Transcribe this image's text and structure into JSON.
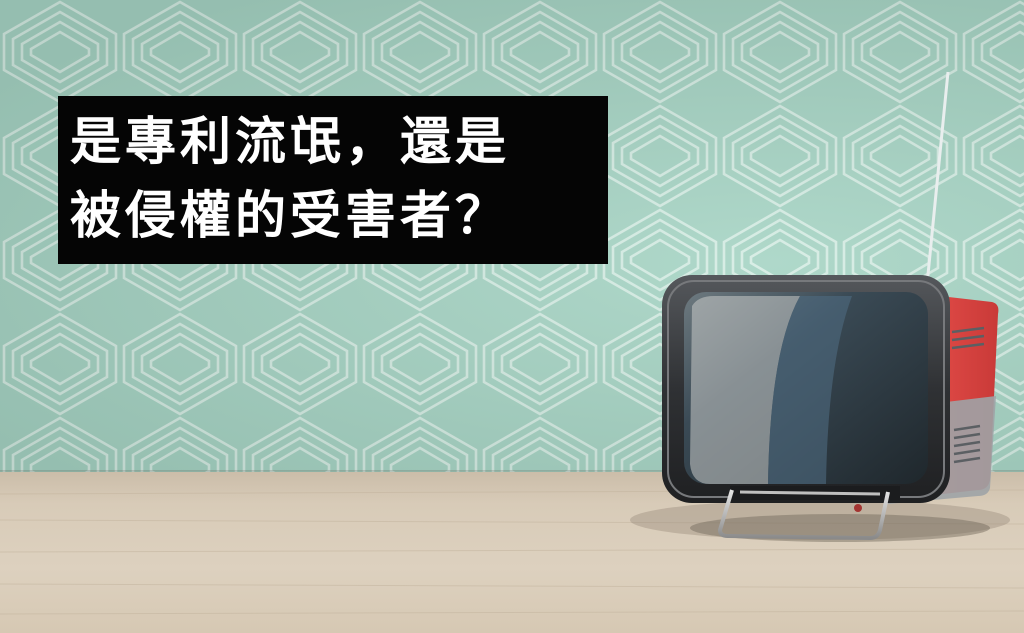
{
  "headline": {
    "line1": "是專利流氓，還是",
    "line2": "被侵權的受害者？"
  },
  "colors": {
    "wall": "#a6d4c4",
    "wall_pattern": "#d9efe6",
    "floor": "#d8cbb8",
    "headline_bg": "#050505",
    "headline_text": "#ffffff",
    "tv_body": "#d8413f",
    "tv_bezel": "#3a3a3c",
    "tv_screen": "#2f3a40"
  }
}
